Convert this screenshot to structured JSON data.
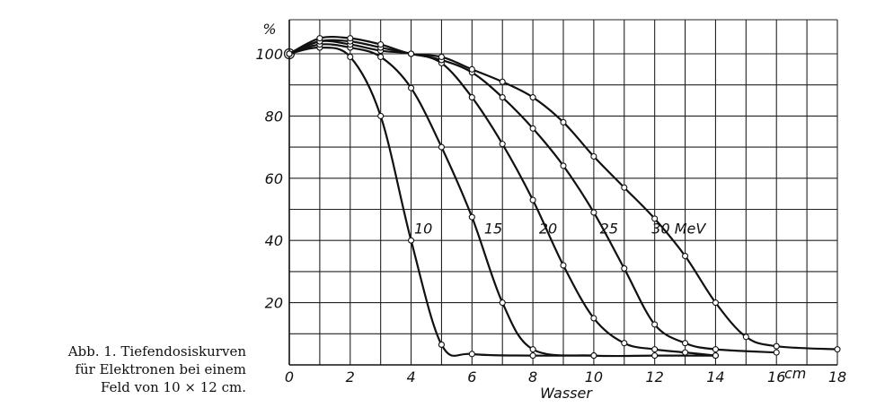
{
  "caption": {
    "line1": "Abb. 1. Tiefendosiskurven",
    "line2": "für Elektronen bei einem",
    "line3": "Feld von 10 × 12 cm."
  },
  "chart_data": {
    "type": "line",
    "title": "",
    "xlabel": "Wasser",
    "x_unit": "cm",
    "ylabel": "%",
    "xlim": [
      0,
      18
    ],
    "ylim": [
      0,
      105
    ],
    "x_ticks": [
      "0",
      "2",
      "4",
      "6",
      "8",
      "10",
      "12",
      "14",
      "16",
      "18"
    ],
    "x_unit_label": "cm",
    "y_ticks": [
      "20",
      "40",
      "60",
      "80",
      "100"
    ],
    "y_unit_label": "%",
    "grid": true,
    "series": [
      {
        "name": "10",
        "label": "10",
        "x": [
          0,
          1,
          2,
          3,
          4,
          5,
          6,
          8,
          10
        ],
        "y": [
          100,
          102,
          99,
          80,
          40,
          6.5,
          3.5,
          3,
          3
        ]
      },
      {
        "name": "15",
        "label": "15",
        "x": [
          0,
          1,
          2,
          3,
          4,
          5,
          6,
          7,
          8,
          10,
          12,
          14
        ],
        "y": [
          100,
          103,
          102,
          99,
          89,
          70,
          47.5,
          20,
          5,
          3,
          3,
          3
        ]
      },
      {
        "name": "20",
        "label": "20",
        "x": [
          0,
          1,
          2,
          3,
          4,
          5,
          6,
          7,
          8,
          9,
          10,
          11,
          12,
          13,
          14
        ],
        "y": [
          100,
          104,
          103,
          101,
          100,
          97,
          86,
          71,
          53,
          32,
          15,
          7,
          5,
          4,
          3
        ]
      },
      {
        "name": "25",
        "label": "25",
        "x": [
          0,
          1,
          2,
          3,
          4,
          5,
          6,
          7,
          8,
          9,
          10,
          11,
          12,
          13,
          14,
          16
        ],
        "y": [
          100,
          104,
          104,
          102,
          100,
          98,
          94,
          86,
          76,
          64,
          49,
          31,
          13,
          7,
          5,
          4
        ]
      },
      {
        "name": "30 MeV",
        "label": "30 MeV",
        "x": [
          0,
          1,
          2,
          3,
          4,
          5,
          6,
          7,
          8,
          9,
          10,
          11,
          12,
          13,
          14,
          15,
          16,
          18
        ],
        "y": [
          100,
          105,
          105,
          103,
          100,
          99,
          95,
          91,
          86,
          78,
          67,
          57,
          47,
          35,
          20,
          9,
          6,
          5
        ]
      }
    ]
  }
}
